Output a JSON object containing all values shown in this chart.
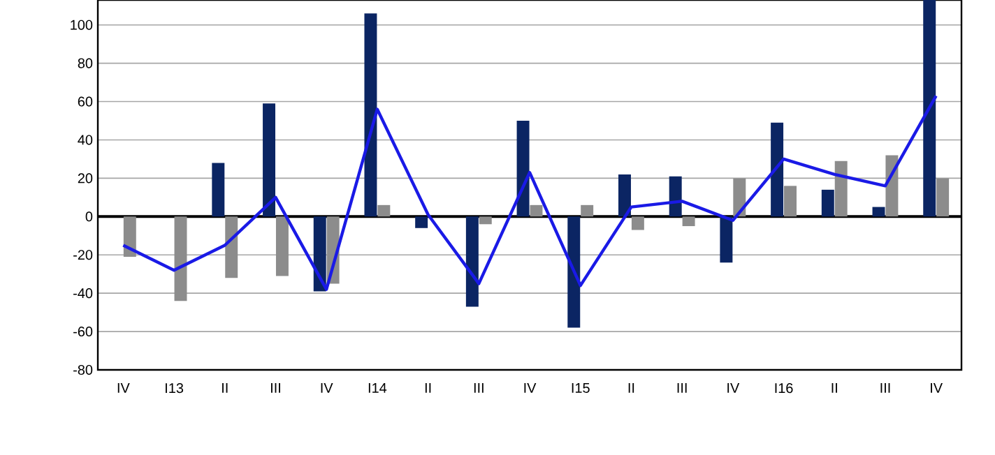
{
  "chart_data": {
    "type": "bar",
    "categories": [
      "IV",
      "I13",
      "II",
      "III",
      "IV",
      "I14",
      "II",
      "III",
      "IV",
      "I15",
      "II",
      "III",
      "IV",
      "I16",
      "II",
      "III",
      "IV"
    ],
    "series": [
      {
        "color": "#0b2563",
        "values": [
          0,
          0,
          28,
          59,
          -39,
          106,
          -6,
          -47,
          50,
          -58,
          22,
          21,
          -24,
          49,
          14,
          5,
          113
        ]
      },
      {
        "color": "#8c8c8c",
        "values": [
          -21,
          -44,
          -32,
          -31,
          -35,
          6,
          0,
          -4,
          6,
          6,
          -7,
          -5,
          20,
          16,
          29,
          32,
          20
        ]
      },
      {
        "type": "line",
        "color": "#1a1ae6",
        "values": [
          -15,
          -28,
          -15,
          10,
          -38,
          56,
          1,
          -35,
          23,
          -36,
          5,
          8,
          -2,
          30,
          22,
          16,
          63
        ]
      }
    ],
    "ylim": [
      -80,
      113
    ],
    "yticks": [
      -80,
      -60,
      -40,
      -20,
      0,
      20,
      40,
      60,
      80,
      100
    ],
    "grid": "y",
    "marker": "none",
    "line_style": "solid",
    "ref_lines": [
      {
        "axis": "y",
        "value": 0,
        "color": "#000000"
      }
    ]
  }
}
